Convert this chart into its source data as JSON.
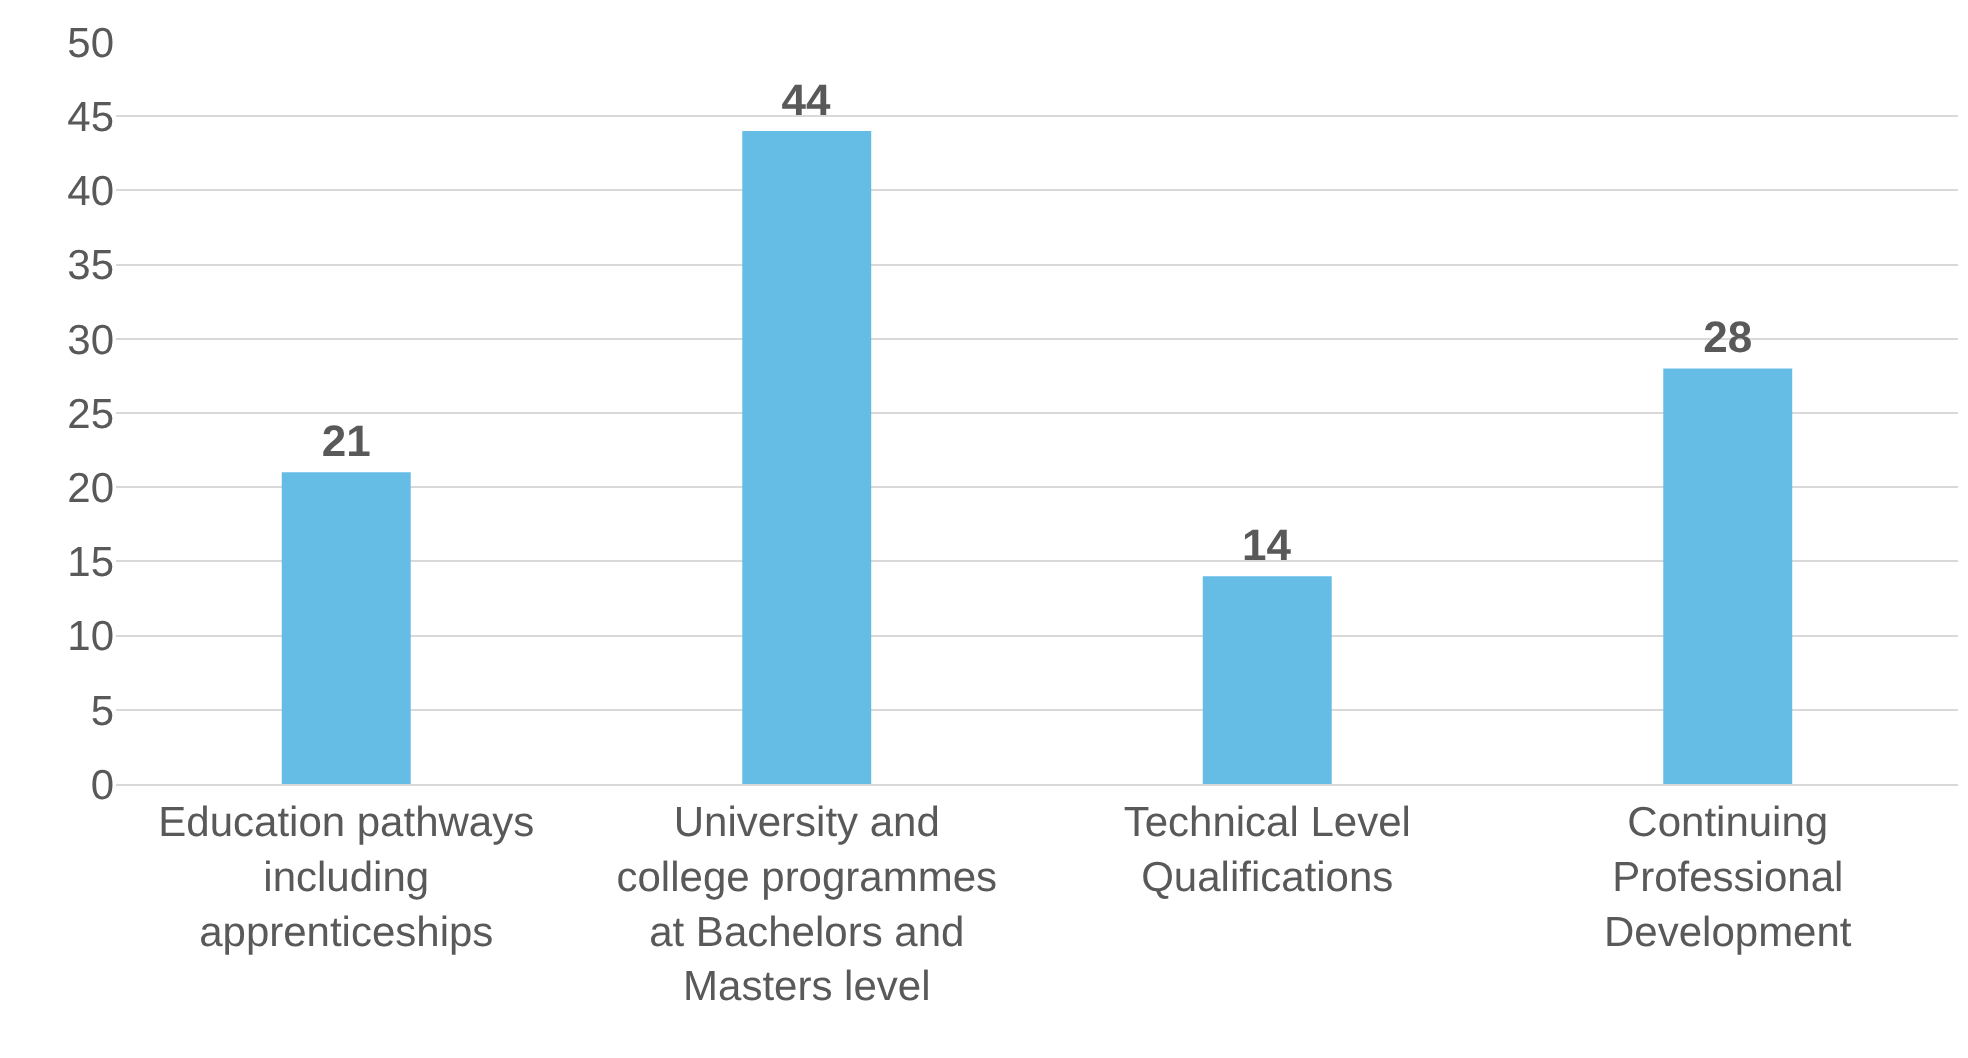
{
  "chart_data": {
    "type": "bar",
    "categories": [
      "Education pathways including apprenticeships",
      "University and college programmes at Bachelors and Masters level",
      "Technical Level Qualifications",
      "Continuing Professional Development"
    ],
    "values": [
      21,
      44,
      14,
      28
    ],
    "color": "#65bde6",
    "ylim": [
      0,
      50
    ],
    "yticks": [
      0,
      5,
      10,
      15,
      20,
      25,
      30,
      35,
      40,
      45,
      50
    ],
    "grid": "y",
    "data_labels": true,
    "legend": false
  }
}
